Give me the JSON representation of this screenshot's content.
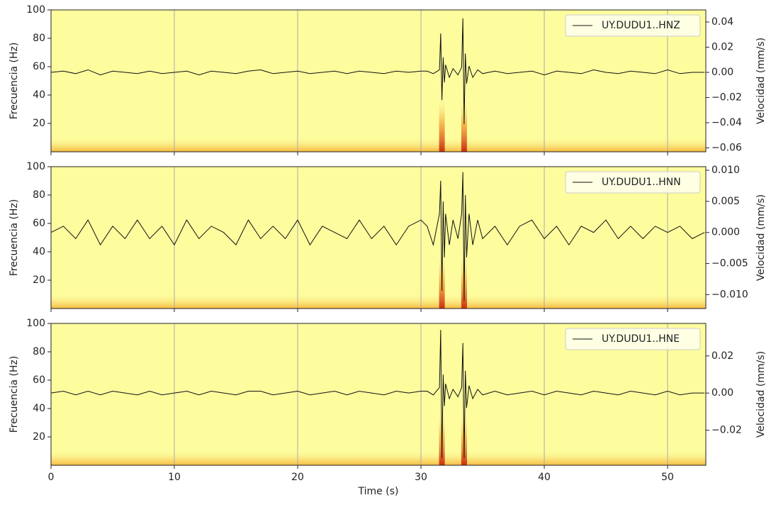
{
  "chart_data": [
    {
      "type": "line",
      "ylabel": "Frecuencia (Hz)",
      "y2label": "Velocidad (mm/s)",
      "background": "#fdfd9e",
      "grid": true,
      "legend": "upper right",
      "xlim": [
        0,
        53.1
      ],
      "xticks": [
        0,
        10,
        20,
        30,
        40,
        50
      ],
      "ylim": [
        0,
        100
      ],
      "yticks": [
        20,
        40,
        60,
        80,
        100
      ],
      "y2lim": [
        -0.0631,
        0.0496
      ],
      "y2ticks": [
        {
          "value": -0.06,
          "label": "−0.06"
        },
        {
          "value": -0.04,
          "label": "−0.04"
        },
        {
          "value": -0.02,
          "label": "−0.02"
        },
        {
          "value": 0,
          "label": "0.00"
        },
        {
          "value": 0.02,
          "label": "0.02"
        },
        {
          "value": 0.04,
          "label": "0.04"
        }
      ],
      "x": [
        0,
        1,
        2,
        3,
        4,
        5,
        6,
        7,
        8,
        9,
        10,
        11,
        12,
        13,
        14,
        15,
        16,
        17,
        18,
        19,
        20,
        21,
        22,
        23,
        24,
        25,
        26,
        27,
        28,
        29,
        30,
        30.5,
        31,
        31.5,
        31.6,
        31.7,
        31.8,
        31.9,
        32,
        32.3,
        32.6,
        33,
        33.3,
        33.4,
        33.5,
        33.6,
        33.7,
        33.9,
        34.2,
        34.6,
        35,
        36,
        37,
        38,
        39,
        40,
        41,
        42,
        43,
        44,
        45,
        46,
        47,
        48,
        49,
        50,
        51,
        52,
        53
      ],
      "series": [
        {
          "name": "UY.DUDU1..HNZ",
          "color": "#111111",
          "axis": "y2",
          "values": [
            0.0,
            0.001,
            -0.001,
            0.002,
            -0.002,
            0.001,
            0.0,
            -0.001,
            0.001,
            -0.001,
            0.0,
            0.001,
            -0.002,
            0.001,
            0.0,
            -0.001,
            0.001,
            0.002,
            -0.001,
            0.0,
            0.001,
            -0.001,
            0.0,
            0.001,
            -0.001,
            0.001,
            0.0,
            -0.001,
            0.001,
            0.0,
            0.001,
            0.001,
            -0.001,
            0.002,
            0.031,
            -0.022,
            0.012,
            -0.008,
            0.006,
            -0.004,
            0.003,
            -0.002,
            0.004,
            0.043,
            -0.041,
            0.015,
            -0.009,
            0.005,
            -0.004,
            0.002,
            -0.001,
            0.001,
            -0.001,
            0.0,
            0.001,
            -0.002,
            0.001,
            0.0,
            -0.001,
            0.002,
            0.0,
            -0.001,
            0.001,
            0.0,
            -0.001,
            0.002,
            -0.001,
            0.0,
            0.0
          ]
        }
      ]
    },
    {
      "type": "line",
      "ylabel": "Frecuencia (Hz)",
      "y2label": "Velocidad (mm/s)",
      "background": "#fdfd9e",
      "grid": true,
      "legend": "upper right",
      "xlim": [
        0,
        53.1
      ],
      "xticks": [
        0,
        10,
        20,
        30,
        40,
        50
      ],
      "ylim": [
        0,
        100
      ],
      "yticks": [
        20,
        40,
        60,
        80,
        100
      ],
      "y2lim": [
        -0.01223,
        0.01057
      ],
      "y2ticks": [
        {
          "value": -0.01,
          "label": "−0.010"
        },
        {
          "value": -0.005,
          "label": "−0.005"
        },
        {
          "value": 0,
          "label": "0.000"
        },
        {
          "value": 0.005,
          "label": "0.005"
        },
        {
          "value": 0.01,
          "label": "0.010"
        }
      ],
      "x": [
        0,
        1,
        2,
        3,
        4,
        5,
        6,
        7,
        8,
        9,
        10,
        11,
        12,
        13,
        14,
        15,
        16,
        17,
        18,
        19,
        20,
        21,
        22,
        23,
        24,
        25,
        26,
        27,
        28,
        29,
        30,
        30.5,
        31,
        31.5,
        31.6,
        31.7,
        31.8,
        31.9,
        32,
        32.3,
        32.6,
        33,
        33.3,
        33.4,
        33.5,
        33.6,
        33.7,
        33.9,
        34.2,
        34.6,
        35,
        36,
        37,
        38,
        39,
        40,
        41,
        42,
        43,
        44,
        45,
        46,
        47,
        48,
        49,
        50,
        51,
        52,
        53
      ],
      "series": [
        {
          "name": "UY.DUDU1..HNN",
          "color": "#111111",
          "axis": "y2",
          "values": [
            0.0,
            0.001,
            -0.001,
            0.002,
            -0.002,
            0.001,
            -0.001,
            0.002,
            -0.001,
            0.001,
            -0.002,
            0.002,
            -0.001,
            0.001,
            0.0,
            -0.002,
            0.002,
            -0.001,
            0.001,
            -0.001,
            0.002,
            -0.002,
            0.001,
            0.0,
            -0.001,
            0.002,
            -0.001,
            0.001,
            -0.002,
            0.001,
            0.002,
            0.001,
            -0.002,
            0.003,
            0.0083,
            -0.0094,
            0.005,
            -0.004,
            0.003,
            -0.002,
            0.002,
            -0.001,
            0.003,
            0.0097,
            -0.011,
            0.006,
            -0.004,
            0.003,
            -0.002,
            0.002,
            -0.001,
            0.001,
            -0.002,
            0.001,
            0.002,
            -0.001,
            0.001,
            -0.002,
            0.001,
            0.0,
            0.002,
            -0.001,
            0.001,
            -0.001,
            0.001,
            0.0,
            0.001,
            -0.001,
            0.0
          ]
        }
      ]
    },
    {
      "type": "line",
      "ylabel": "Frecuencia (Hz)",
      "y2label": "Velocidad (mm/s)",
      "xlabel": "Time (s)",
      "background": "#fdfd9e",
      "grid": true,
      "legend": "upper right",
      "xlim": [
        0,
        53.1
      ],
      "xticks": [
        0,
        10,
        20,
        30,
        40,
        50
      ],
      "ylim": [
        0,
        100
      ],
      "yticks": [
        20,
        40,
        60,
        80,
        100
      ],
      "y2lim": [
        -0.0389,
        0.0375
      ],
      "y2ticks": [
        {
          "value": -0.02,
          "label": "−0.02"
        },
        {
          "value": 0,
          "label": "0.00"
        },
        {
          "value": 0.02,
          "label": "0.02"
        }
      ],
      "x": [
        0,
        1,
        2,
        3,
        4,
        5,
        6,
        7,
        8,
        9,
        10,
        11,
        12,
        13,
        14,
        15,
        16,
        17,
        18,
        19,
        20,
        21,
        22,
        23,
        24,
        25,
        26,
        27,
        28,
        29,
        30,
        30.5,
        31,
        31.5,
        31.6,
        31.7,
        31.8,
        31.9,
        32,
        32.3,
        32.6,
        33,
        33.3,
        33.4,
        33.5,
        33.6,
        33.7,
        33.9,
        34.2,
        34.6,
        35,
        36,
        37,
        38,
        39,
        40,
        41,
        42,
        43,
        44,
        45,
        46,
        47,
        48,
        49,
        50,
        51,
        52,
        53
      ],
      "series": [
        {
          "name": "UY.DUDU1..HNE",
          "color": "#111111",
          "axis": "y2",
          "values": [
            0.0,
            0.001,
            -0.001,
            0.001,
            -0.001,
            0.001,
            0.0,
            -0.001,
            0.001,
            -0.001,
            0.0,
            0.001,
            -0.001,
            0.001,
            0.0,
            -0.001,
            0.001,
            0.001,
            -0.001,
            0.0,
            0.001,
            -0.001,
            0.0,
            0.001,
            -0.001,
            0.001,
            0.0,
            -0.001,
            0.001,
            0.0,
            0.001,
            0.001,
            -0.001,
            0.003,
            0.034,
            -0.035,
            0.01,
            -0.007,
            0.005,
            -0.003,
            0.002,
            -0.002,
            0.003,
            0.027,
            -0.035,
            0.012,
            -0.008,
            0.004,
            -0.003,
            0.002,
            -0.001,
            0.001,
            -0.001,
            0.0,
            0.001,
            -0.001,
            0.001,
            0.0,
            -0.001,
            0.001,
            0.0,
            -0.001,
            0.001,
            0.0,
            -0.001,
            0.001,
            -0.001,
            0.0,
            0.0
          ]
        }
      ]
    }
  ]
}
